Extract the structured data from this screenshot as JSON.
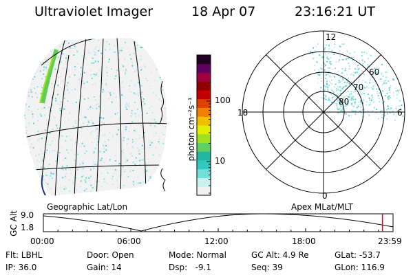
{
  "header": {
    "instrument": "Ultraviolet Imager",
    "date": "18 Apr 07",
    "time": "23:16:21 UT"
  },
  "colorbar": {
    "unit_label": "photon cm⁻²s⁻¹",
    "ticks": [
      {
        "label": "100",
        "value": 100
      },
      {
        "label": "10",
        "value": 10
      }
    ],
    "colors": [
      "#f0f0f0",
      "#c8f0f0",
      "#70e0d8",
      "#30c8c0",
      "#20b8a0",
      "#60d060",
      "#a0e020",
      "#e0f000",
      "#f0c000",
      "#f08000",
      "#e04000",
      "#c00000",
      "#900000",
      "#a00040",
      "#600060",
      "#200020"
    ]
  },
  "map_panels": {
    "left_label": "Geographic Lat/Lon",
    "right_label": "Apex MLat/MLT",
    "polar": {
      "clock_labels": [
        {
          "label": "12",
          "angle": 0
        },
        {
          "label": "18",
          "angle": 270
        },
        {
          "label": "6",
          "angle": 90
        },
        {
          "label": "0",
          "angle": 180
        }
      ],
      "lat_labels": [
        {
          "label": "60",
          "lat": 60
        },
        {
          "label": "70",
          "lat": 70
        },
        {
          "label": "80",
          "lat": 80
        }
      ]
    }
  },
  "timeline": {
    "ylabel": "GC Alt",
    "y_max_label": "9.0",
    "y_min_label": "1.8",
    "x_ticks": [
      "00:00",
      "06:00",
      "12:00",
      "18:00",
      "23:59"
    ],
    "current_time_fraction": 0.9697,
    "marker_color": "#e00000"
  },
  "info": {
    "flt": "Flt: LBHL",
    "door": "Door: Open",
    "mode": "Mode: Normal",
    "gc_alt": "GC Alt: 4.9 Re",
    "glat": "GLat: -53.7",
    "ip": "IP: 36.0",
    "gain": "Gain: 14",
    "dsp": "Dsp:   -9.1",
    "seq": "Seq: 39",
    "glon": "GLon: 116.9"
  }
}
